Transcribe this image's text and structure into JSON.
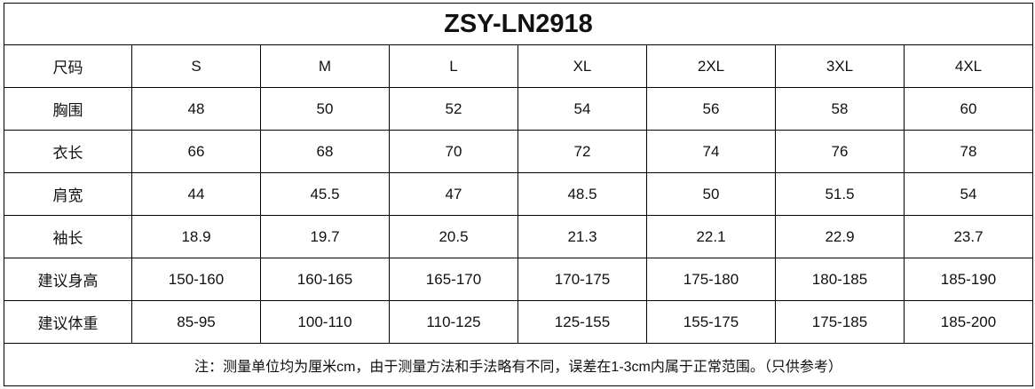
{
  "title": "ZSY-LN2918",
  "table": {
    "header": [
      "尺码",
      "S",
      "M",
      "L",
      "XL",
      "2XL",
      "3XL",
      "4XL"
    ],
    "rows": [
      [
        "胸围",
        "48",
        "50",
        "52",
        "54",
        "56",
        "58",
        "60"
      ],
      [
        "衣长",
        "66",
        "68",
        "70",
        "72",
        "74",
        "76",
        "78"
      ],
      [
        "肩宽",
        "44",
        "45.5",
        "47",
        "48.5",
        "50",
        "51.5",
        "54"
      ],
      [
        "袖长",
        "18.9",
        "19.7",
        "20.5",
        "21.3",
        "22.1",
        "22.9",
        "23.7"
      ],
      [
        "建议身高",
        "150-160",
        "160-165",
        "165-170",
        "170-175",
        "175-180",
        "180-185",
        "185-190"
      ],
      [
        "建议体重",
        "85-95",
        "100-110",
        "110-125",
        "125-155",
        "155-175",
        "175-185",
        "185-200"
      ]
    ]
  },
  "footnote": "注：测量单位均为厘米cm，由于测量方法和手法略有不同，误差在1-3cm内属于正常范围。（只供参考）"
}
